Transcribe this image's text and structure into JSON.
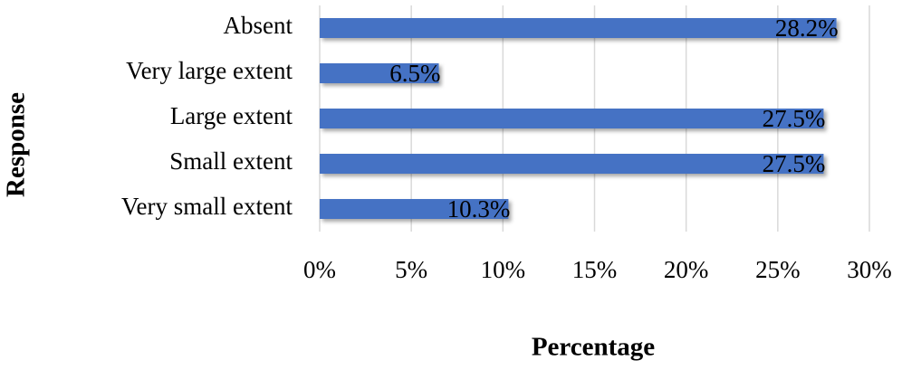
{
  "chart_data": {
    "type": "bar",
    "orientation": "horizontal",
    "categories": [
      "Absent",
      "Very large extent",
      "Large extent",
      "Small extent",
      "Very small extent"
    ],
    "values": [
      28.2,
      6.5,
      27.5,
      27.5,
      10.3
    ],
    "value_labels": [
      "28.2%",
      "6.5%",
      "27.5%",
      "27.5%",
      "10.3%"
    ],
    "color": "#4472c4",
    "xlabel": "Percentage",
    "ylabel": "Response",
    "xlim": [
      0,
      30
    ],
    "xticks": [
      {
        "value": 0,
        "label": "0%"
      },
      {
        "value": 5,
        "label": "5%"
      },
      {
        "value": 10,
        "label": "10%"
      },
      {
        "value": 15,
        "label": "15%"
      },
      {
        "value": 20,
        "label": "20%"
      },
      {
        "value": 25,
        "label": "25%"
      },
      {
        "value": 30,
        "label": "30%"
      }
    ],
    "grid": true
  }
}
